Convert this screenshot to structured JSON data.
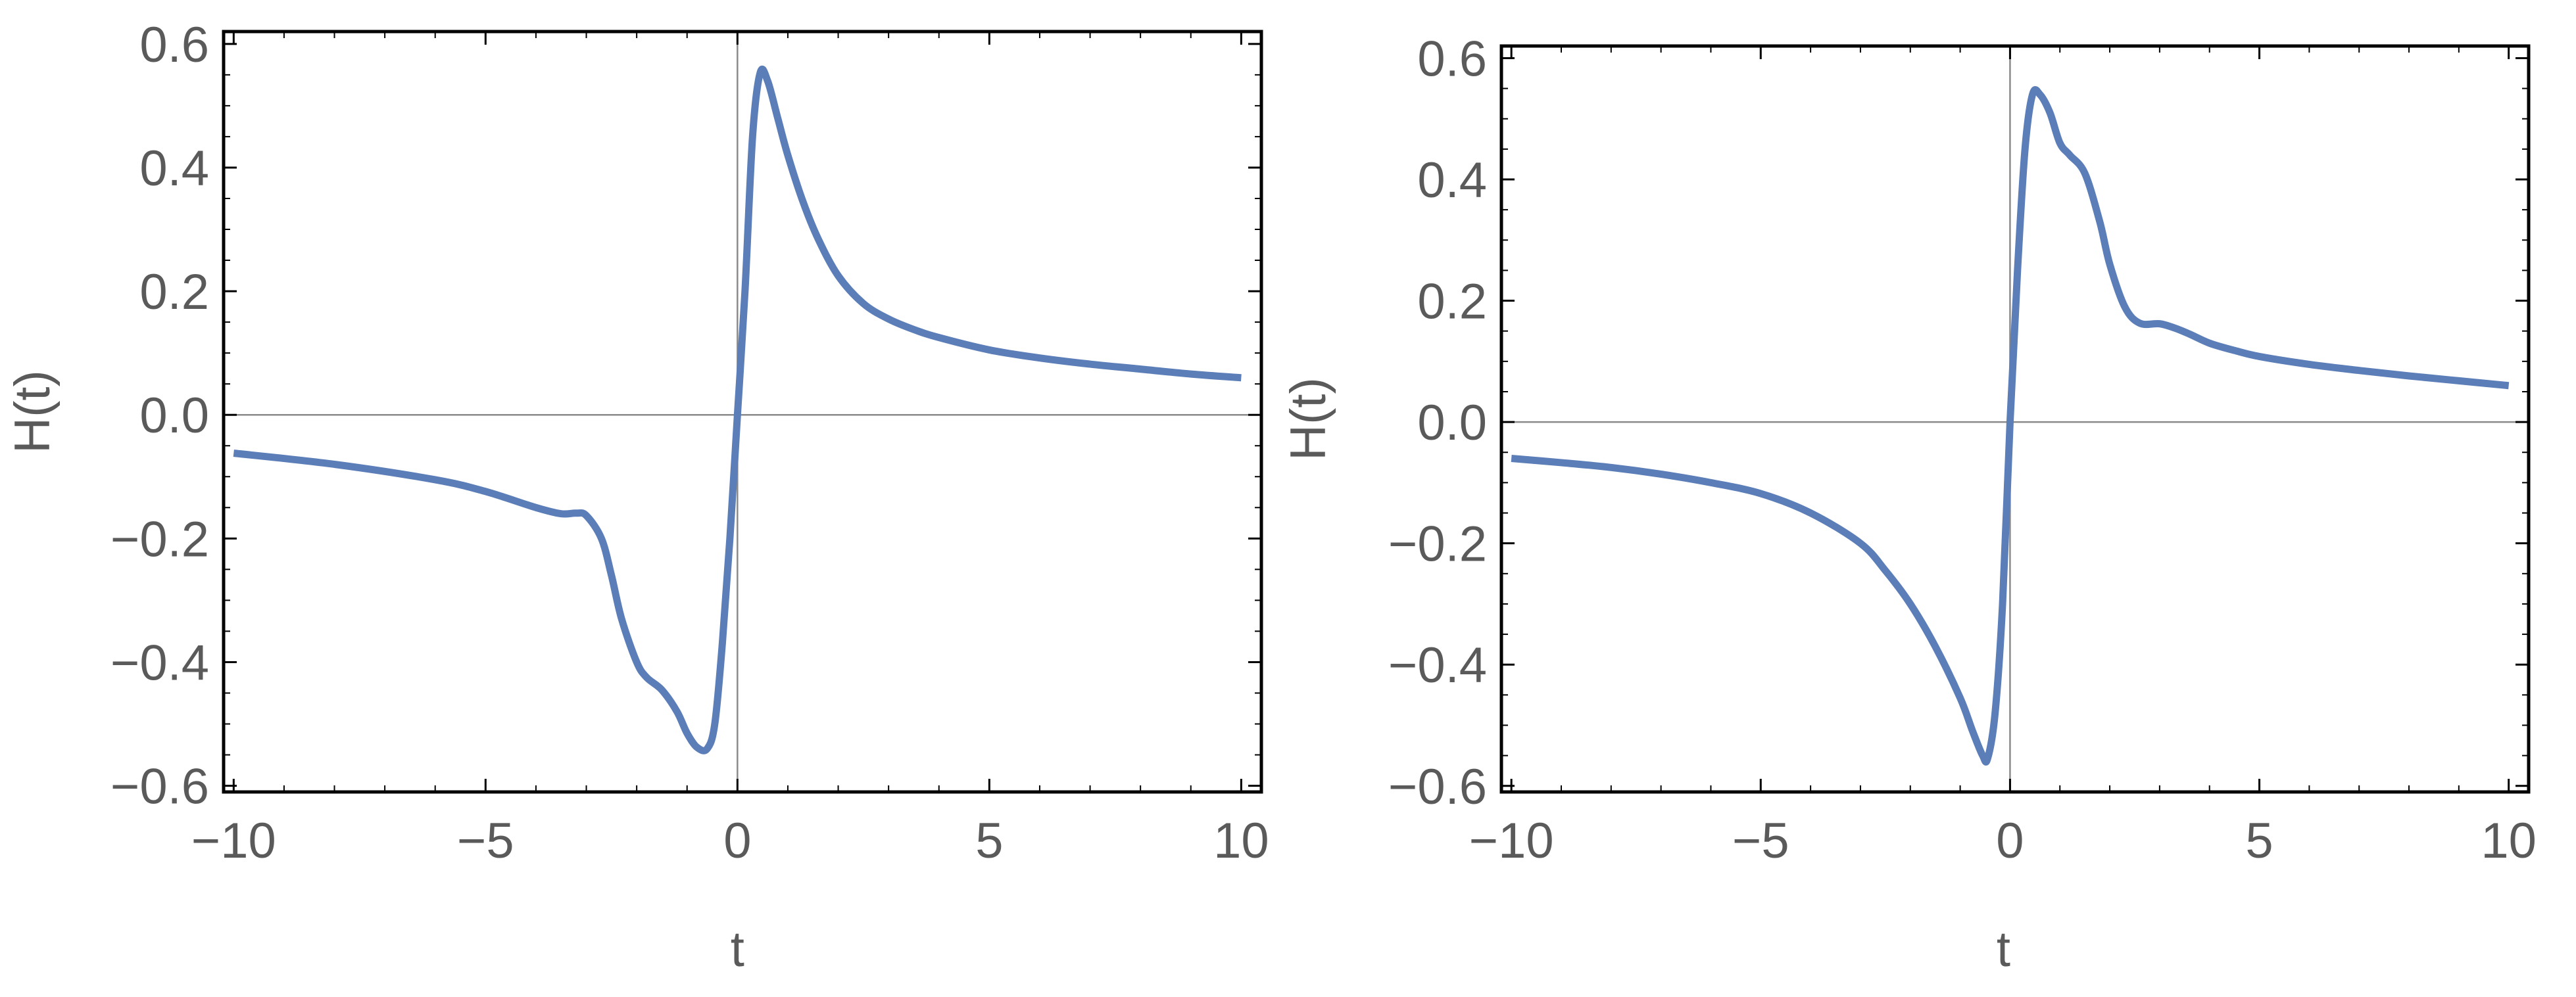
{
  "chart_data": [
    {
      "type": "line",
      "xlabel": "t",
      "ylabel": "H(t)",
      "xlim": [
        -10.2,
        10.4
      ],
      "ylim": [
        -0.61,
        0.62
      ],
      "x_ticks": [
        -10,
        -5,
        0,
        5,
        10
      ],
      "x_tick_labels": [
        "−10",
        "−5",
        "0",
        "5",
        "10"
      ],
      "y_ticks": [
        -0.6,
        -0.4,
        -0.2,
        0.0,
        0.2,
        0.4,
        0.6
      ],
      "y_tick_labels": [
        "−0.6",
        "−0.4",
        "−0.2",
        "0.0",
        "0.2",
        "0.4",
        "0.6"
      ],
      "grid": false,
      "series": [
        {
          "color": "#5b7db8",
          "x": [
            -10,
            -8,
            -6,
            -5,
            -4,
            -3.5,
            -3.2,
            -3,
            -2.7,
            -2.5,
            -2.3,
            -2,
            -1.8,
            -1.5,
            -1.2,
            -1,
            -0.8,
            -0.6,
            -0.45,
            -0.3,
            -0.15,
            0,
            0.15,
            0.3,
            0.45,
            0.6,
            0.8,
            1,
            1.3,
            1.6,
            2,
            2.5,
            3,
            3.5,
            4,
            5,
            6,
            7,
            8,
            9,
            10
          ],
          "y": [
            -0.062,
            -0.08,
            -0.105,
            -0.124,
            -0.15,
            -0.16,
            -0.159,
            -0.163,
            -0.2,
            -0.26,
            -0.33,
            -0.4,
            -0.425,
            -0.445,
            -0.48,
            -0.515,
            -0.538,
            -0.54,
            -0.5,
            -0.37,
            -0.2,
            0.0,
            0.2,
            0.45,
            0.553,
            0.54,
            0.48,
            0.42,
            0.345,
            0.285,
            0.225,
            0.18,
            0.155,
            0.138,
            0.125,
            0.105,
            0.092,
            0.082,
            0.074,
            0.066,
            0.06
          ]
        }
      ]
    },
    {
      "type": "line",
      "xlabel": "t",
      "ylabel": "H(t)",
      "xlim": [
        -10.2,
        10.4
      ],
      "ylim": [
        -0.61,
        0.62
      ],
      "x_ticks": [
        -10,
        -5,
        0,
        5,
        10
      ],
      "x_tick_labels": [
        "−10",
        "−5",
        "0",
        "5",
        "10"
      ],
      "y_ticks": [
        -0.6,
        -0.4,
        -0.2,
        0.0,
        0.2,
        0.4,
        0.6
      ],
      "y_tick_labels": [
        "−0.6",
        "−0.4",
        "−0.2",
        "0.0",
        "0.2",
        "0.4",
        "0.6"
      ],
      "grid": false,
      "series": [
        {
          "color": "#5b7db8",
          "x": [
            -10,
            -9,
            -8,
            -7,
            -6,
            -5,
            -4,
            -3,
            -2.5,
            -2,
            -1.5,
            -1,
            -0.75,
            -0.55,
            -0.45,
            -0.3,
            -0.15,
            0,
            0.15,
            0.3,
            0.45,
            0.6,
            0.8,
            1,
            1.2,
            1.5,
            1.8,
            2,
            2.3,
            2.6,
            3,
            3.3,
            3.6,
            4,
            4.5,
            5,
            6,
            7,
            8,
            9,
            10
          ],
          "y": [
            -0.06,
            -0.067,
            -0.075,
            -0.086,
            -0.1,
            -0.118,
            -0.15,
            -0.2,
            -0.245,
            -0.3,
            -0.37,
            -0.455,
            -0.51,
            -0.55,
            -0.555,
            -0.48,
            -0.3,
            0.0,
            0.25,
            0.45,
            0.54,
            0.54,
            0.51,
            0.46,
            0.44,
            0.41,
            0.33,
            0.26,
            0.19,
            0.163,
            0.162,
            0.155,
            0.145,
            0.13,
            0.118,
            0.108,
            0.095,
            0.085,
            0.076,
            0.068,
            0.06
          ]
        }
      ]
    }
  ]
}
